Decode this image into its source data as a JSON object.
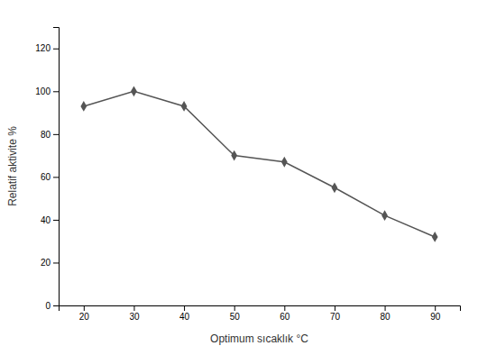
{
  "chart_data": {
    "type": "line",
    "x": [
      20,
      30,
      40,
      50,
      60,
      70,
      80,
      90
    ],
    "values": [
      93,
      100,
      93,
      70,
      67,
      55,
      42,
      32
    ],
    "xlabel": "Optimum sıcaklık °C",
    "ylabel": "Relatif aktivite %",
    "xlim": [
      15,
      95
    ],
    "ylim": [
      0,
      130
    ],
    "xticks": [
      20,
      30,
      40,
      50,
      60,
      70,
      80,
      90
    ],
    "yticks": [
      0,
      20,
      40,
      60,
      80,
      100,
      120
    ],
    "color": "#555555",
    "marker": "diamond",
    "grid": false
  }
}
